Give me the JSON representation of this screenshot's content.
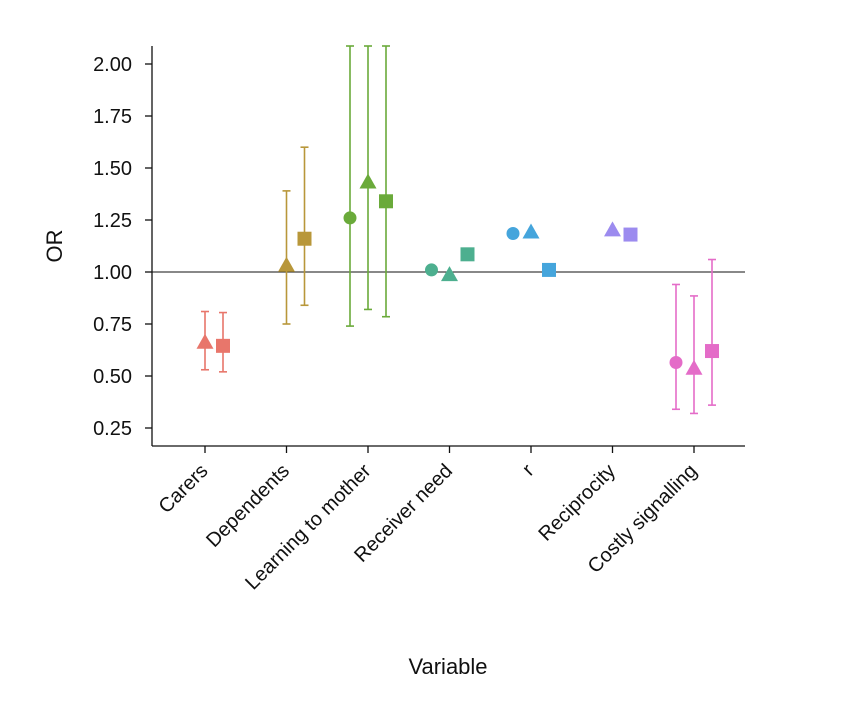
{
  "chart_data": {
    "type": "scatter",
    "title": "",
    "xlabel": "Variable",
    "ylabel": "OR",
    "categories": [
      "Carers",
      "Dependents",
      "Learning to mother",
      "Receiver need",
      "r",
      "Reciprocity",
      "Costly signalling"
    ],
    "ylim": [
      0.16,
      2.1
    ],
    "yticks": [
      "0.25",
      "0.50",
      "0.75",
      "1.00",
      "1.25",
      "1.50",
      "1.75",
      "2.00"
    ],
    "reference_line": 1.0,
    "grid": false,
    "legend": "none",
    "marker_order": [
      "circle",
      "triangle",
      "square"
    ],
    "colors": {
      "Carers": "#e8766b",
      "Dependents": "#b8973a",
      "Learning to mother": "#6aaa3a",
      "Receiver need": "#4daf8f",
      "r": "#45a5dc",
      "Reciprocity": "#9c8bef",
      "Costly signalling": "#e46cc8"
    },
    "series": [
      {
        "marker": "circle",
        "values": [
          null,
          null,
          1.26,
          1.01,
          1.185,
          null,
          0.565
        ],
        "ci_low": [
          null,
          null,
          0.74,
          null,
          null,
          null,
          0.34
        ],
        "ci_high": [
          null,
          null,
          2.1,
          null,
          null,
          null,
          0.94
        ]
      },
      {
        "marker": "triangle",
        "values": [
          0.66,
          1.03,
          1.43,
          0.985,
          1.19,
          1.2,
          0.535
        ],
        "ci_low": [
          0.53,
          0.75,
          0.82,
          null,
          null,
          null,
          0.32
        ],
        "ci_high": [
          0.81,
          1.39,
          2.1,
          null,
          null,
          null,
          0.885
        ]
      },
      {
        "marker": "square",
        "values": [
          0.645,
          1.16,
          1.34,
          1.085,
          1.01,
          1.18,
          0.62
        ],
        "ci_low": [
          0.52,
          0.84,
          0.785,
          null,
          null,
          null,
          0.36
        ],
        "ci_high": [
          0.805,
          1.6,
          2.1,
          null,
          null,
          null,
          1.06
        ]
      }
    ]
  }
}
